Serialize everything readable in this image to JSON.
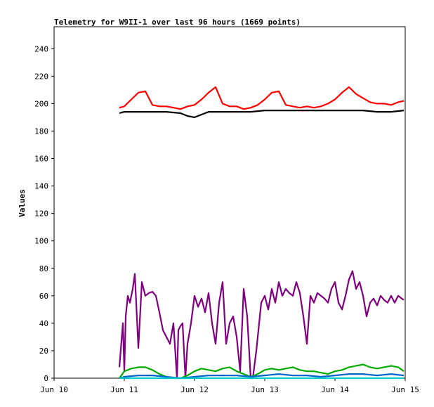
{
  "chart_data": {
    "type": "line",
    "title": "Telemetry for W9II-1 over last 96 hours (1669 points)",
    "xlabel": "",
    "ylabel": "Values",
    "xlim": [
      0,
      5
    ],
    "ylim": [
      0,
      256
    ],
    "x_ticks": [
      {
        "x": 0,
        "label": "Jun 10"
      },
      {
        "x": 1,
        "label": "Jun 11"
      },
      {
        "x": 2,
        "label": "Jun 12"
      },
      {
        "x": 3,
        "label": "Jun 13"
      },
      {
        "x": 4,
        "label": "Jun 14"
      },
      {
        "x": 5,
        "label": "Jun 15"
      }
    ],
    "y_ticks": [
      0,
      20,
      40,
      60,
      80,
      100,
      120,
      140,
      160,
      180,
      200,
      220,
      240
    ],
    "grid": false,
    "legend": "none",
    "series": [
      {
        "color": "#ff0000",
        "x": [
          0.93,
          1.0,
          1.1,
          1.2,
          1.3,
          1.4,
          1.5,
          1.6,
          1.7,
          1.8,
          1.9,
          2.0,
          2.1,
          2.2,
          2.3,
          2.4,
          2.5,
          2.6,
          2.7,
          2.8,
          2.9,
          3.0,
          3.1,
          3.2,
          3.3,
          3.4,
          3.5,
          3.6,
          3.7,
          3.8,
          3.9,
          4.0,
          4.1,
          4.2,
          4.3,
          4.4,
          4.5,
          4.6,
          4.7,
          4.8,
          4.9,
          4.98
        ],
        "values": [
          197,
          198,
          203,
          208,
          209,
          199,
          198,
          198,
          197,
          196,
          198,
          199,
          203,
          208,
          212,
          200,
          198,
          198,
          196,
          197,
          199,
          203,
          208,
          209,
          199,
          198,
          197,
          198,
          197,
          198,
          200,
          203,
          208,
          212,
          207,
          204,
          201,
          200,
          200,
          199,
          201,
          202
        ]
      },
      {
        "color": "#000000",
        "x": [
          0.93,
          1.0,
          1.2,
          1.4,
          1.6,
          1.8,
          1.9,
          2.0,
          2.1,
          2.2,
          2.4,
          2.6,
          2.8,
          3.0,
          3.2,
          3.4,
          3.6,
          3.8,
          4.0,
          4.2,
          4.4,
          4.6,
          4.8,
          4.98
        ],
        "values": [
          193,
          194,
          194,
          194,
          194,
          193,
          191,
          190,
          192,
          194,
          194,
          194,
          194,
          195,
          195,
          195,
          195,
          195,
          195,
          195,
          195,
          194,
          194,
          195
        ]
      },
      {
        "color": "#800080",
        "x": [
          0.93,
          0.98,
          1.0,
          1.02,
          1.05,
          1.08,
          1.12,
          1.15,
          1.2,
          1.25,
          1.3,
          1.35,
          1.4,
          1.45,
          1.5,
          1.55,
          1.6,
          1.65,
          1.7,
          1.75,
          1.77,
          1.8,
          1.83,
          1.87,
          1.9,
          1.95,
          2.0,
          2.05,
          2.1,
          2.15,
          2.2,
          2.25,
          2.3,
          2.35,
          2.4,
          2.45,
          2.5,
          2.55,
          2.6,
          2.65,
          2.7,
          2.75,
          2.8,
          2.83,
          2.88,
          2.92,
          2.95,
          3.0,
          3.05,
          3.1,
          3.15,
          3.2,
          3.25,
          3.3,
          3.35,
          3.4,
          3.45,
          3.5,
          3.55,
          3.6,
          3.65,
          3.7,
          3.75,
          3.8,
          3.85,
          3.9,
          3.95,
          4.0,
          4.05,
          4.1,
          4.15,
          4.2,
          4.25,
          4.3,
          4.35,
          4.4,
          4.45,
          4.5,
          4.55,
          4.6,
          4.65,
          4.7,
          4.75,
          4.8,
          4.85,
          4.9,
          4.95,
          4.98
        ],
        "values": [
          8,
          40,
          5,
          45,
          60,
          55,
          65,
          76,
          22,
          70,
          60,
          62,
          63,
          60,
          48,
          35,
          30,
          25,
          40,
          0,
          35,
          38,
          40,
          0,
          25,
          40,
          60,
          52,
          58,
          48,
          62,
          40,
          25,
          55,
          70,
          25,
          40,
          45,
          30,
          5,
          65,
          45,
          0,
          0,
          20,
          40,
          55,
          60,
          50,
          65,
          55,
          70,
          60,
          65,
          62,
          60,
          70,
          62,
          45,
          25,
          60,
          55,
          62,
          60,
          58,
          55,
          65,
          70,
          55,
          50,
          60,
          72,
          78,
          65,
          70,
          60,
          45,
          55,
          58,
          53,
          60,
          57,
          55,
          60,
          55,
          60,
          58,
          57
        ]
      },
      {
        "color": "#00aa00",
        "x": [
          0.93,
          1.0,
          1.1,
          1.2,
          1.3,
          1.4,
          1.5,
          1.6,
          1.7,
          1.8,
          1.9,
          2.0,
          2.1,
          2.2,
          2.3,
          2.4,
          2.5,
          2.6,
          2.7,
          2.8,
          2.9,
          3.0,
          3.1,
          3.2,
          3.3,
          3.4,
          3.5,
          3.6,
          3.7,
          3.8,
          3.9,
          4.0,
          4.1,
          4.2,
          4.3,
          4.4,
          4.5,
          4.6,
          4.7,
          4.8,
          4.9,
          4.98
        ],
        "values": [
          0,
          5,
          7,
          8,
          8,
          6,
          3,
          1,
          0,
          0,
          2,
          5,
          7,
          6,
          5,
          7,
          8,
          5,
          3,
          1,
          3,
          6,
          7,
          6,
          7,
          8,
          6,
          5,
          5,
          4,
          3,
          5,
          6,
          8,
          9,
          10,
          8,
          7,
          8,
          9,
          8,
          5
        ]
      },
      {
        "color": "#0066cc",
        "x": [
          0.93,
          1.0,
          1.2,
          1.4,
          1.6,
          1.8,
          2.0,
          2.2,
          2.4,
          2.6,
          2.8,
          3.0,
          3.2,
          3.4,
          3.6,
          3.8,
          4.0,
          4.2,
          4.4,
          4.6,
          4.8,
          4.98
        ],
        "values": [
          0,
          1,
          2,
          2,
          1,
          0,
          1,
          2,
          2,
          2,
          1,
          2,
          3,
          2,
          2,
          1,
          2,
          3,
          3,
          2,
          3,
          2
        ]
      },
      {
        "color": "#00cccc",
        "x": [
          0.93,
          1.5,
          2.0,
          2.5,
          3.0,
          3.5,
          4.0,
          4.5,
          4.98
        ],
        "values": [
          0,
          0,
          0,
          0,
          0,
          0,
          0,
          0,
          0
        ]
      }
    ]
  }
}
